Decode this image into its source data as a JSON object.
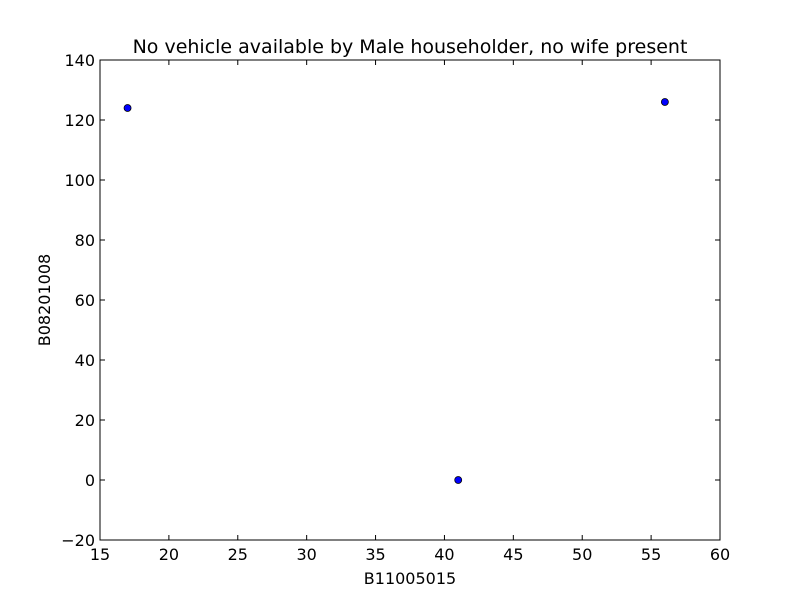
{
  "chart_data": {
    "type": "scatter",
    "title": "No vehicle available by Male householder, no wife present",
    "xlabel": "B11005015",
    "ylabel": "B08201008",
    "xlim": [
      15,
      60
    ],
    "ylim": [
      -20,
      140
    ],
    "xticks": [
      15,
      20,
      25,
      30,
      35,
      40,
      45,
      50,
      55,
      60
    ],
    "yticks": [
      -20,
      0,
      20,
      40,
      60,
      80,
      100,
      120,
      140
    ],
    "xtick_labels": [
      "15",
      "20",
      "25",
      "30",
      "35",
      "40",
      "45",
      "50",
      "55",
      "60"
    ],
    "ytick_labels": [
      "−20",
      "0",
      "20",
      "40",
      "60",
      "80",
      "100",
      "120",
      "140"
    ],
    "grid": false,
    "legend": "none",
    "marker_color": "#0000ff",
    "series": [
      {
        "x": [
          17,
          41,
          56
        ],
        "y": [
          124,
          0,
          126
        ]
      }
    ]
  }
}
